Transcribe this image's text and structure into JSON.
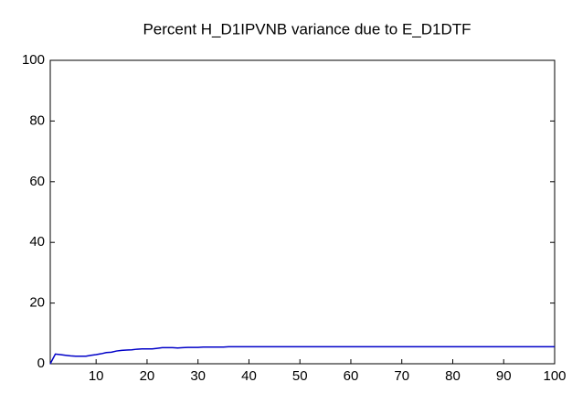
{
  "chart_data": {
    "type": "line",
    "title": "Percent H_D1IPVNB variance due to E_D1DTF",
    "x": [
      1,
      2,
      3,
      4,
      5,
      6,
      7,
      8,
      9,
      10,
      11,
      12,
      13,
      14,
      15,
      16,
      17,
      18,
      19,
      20,
      21,
      22,
      23,
      24,
      25,
      26,
      27,
      28,
      29,
      30,
      31,
      32,
      33,
      34,
      35,
      36,
      37,
      38,
      39,
      40,
      41,
      42,
      43,
      44,
      45,
      46,
      47,
      48,
      49,
      50,
      51,
      52,
      53,
      54,
      55,
      56,
      57,
      58,
      59,
      60,
      61,
      62,
      63,
      64,
      65,
      66,
      67,
      68,
      69,
      70,
      71,
      72,
      73,
      74,
      75,
      76,
      77,
      78,
      79,
      80,
      81,
      82,
      83,
      84,
      85,
      86,
      87,
      88,
      89,
      90,
      91,
      92,
      93,
      94,
      95,
      96,
      97,
      98,
      99,
      100
    ],
    "series": [
      {
        "color": "#0000c8",
        "values": [
          0,
          3.2,
          3.0,
          2.8,
          2.6,
          2.5,
          2.5,
          2.5,
          2.8,
          3.0,
          3.3,
          3.7,
          3.8,
          4.2,
          4.4,
          4.5,
          4.6,
          4.8,
          4.9,
          4.9,
          4.9,
          5.1,
          5.3,
          5.3,
          5.3,
          5.2,
          5.3,
          5.4,
          5.4,
          5.4,
          5.5,
          5.5,
          5.5,
          5.5,
          5.5,
          5.6,
          5.6,
          5.6,
          5.6,
          5.6,
          5.6,
          5.6,
          5.6,
          5.6,
          5.6,
          5.6,
          5.6,
          5.6,
          5.6,
          5.6,
          5.6,
          5.6,
          5.6,
          5.6,
          5.6,
          5.6,
          5.6,
          5.6,
          5.6,
          5.6,
          5.6,
          5.6,
          5.6,
          5.6,
          5.6,
          5.6,
          5.6,
          5.6,
          5.6,
          5.6,
          5.6,
          5.6,
          5.6,
          5.6,
          5.6,
          5.6,
          5.6,
          5.6,
          5.6,
          5.6,
          5.6,
          5.6,
          5.6,
          5.6,
          5.6,
          5.6,
          5.6,
          5.6,
          5.6,
          5.6,
          5.6,
          5.6,
          5.6,
          5.6,
          5.6,
          5.6,
          5.6,
          5.6,
          5.6,
          5.6
        ]
      }
    ],
    "xlim": [
      1,
      100
    ],
    "xticks": [
      10,
      20,
      30,
      40,
      50,
      60,
      70,
      80,
      90,
      100
    ],
    "ylim": [
      0,
      100
    ],
    "yticks": [
      0,
      20,
      40,
      60,
      80,
      100
    ],
    "grid": false
  }
}
